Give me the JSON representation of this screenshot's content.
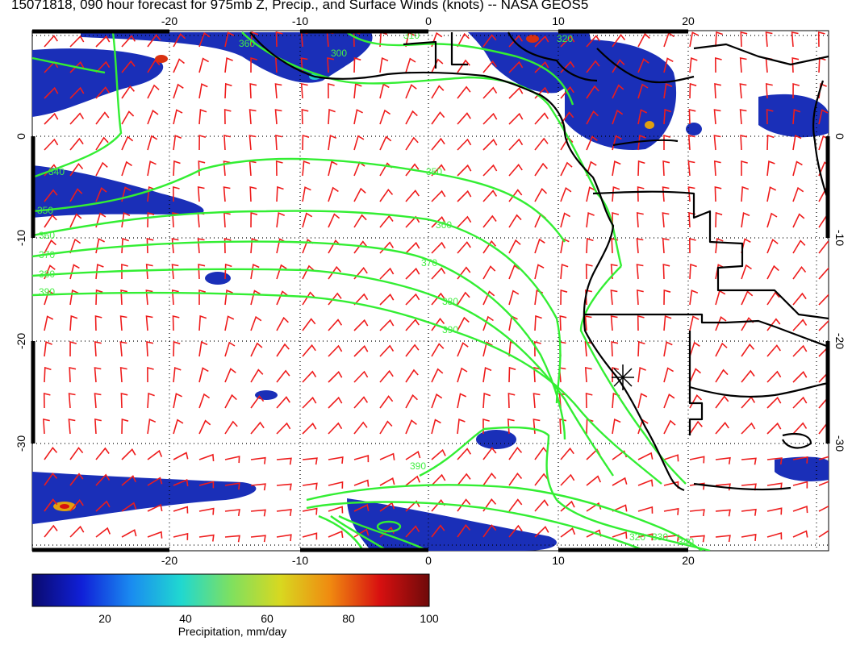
{
  "title": "15071818, 090 hour forecast for 975mb Z, Precip., and Surface Winds (knots) -- NASA GEOS5",
  "map": {
    "lon_ticks": [
      "-20",
      "-10",
      "0",
      "10",
      "20"
    ],
    "lat_ticks": [
      "0",
      "-10",
      "-20",
      "-30"
    ],
    "contour_labels": [
      "340",
      "350",
      "360",
      "370",
      "380",
      "390",
      "360",
      "370",
      "380",
      "390",
      "390",
      "350",
      "340",
      "330",
      "320",
      "300",
      "310",
      "320",
      "360"
    ],
    "colors": {
      "contour": "#33ee33",
      "barb": "#ee1c1c",
      "coast": "#000000",
      "precip_low": "#1a2fb8"
    }
  },
  "colorbar": {
    "ticks": [
      "20",
      "40",
      "60",
      "80",
      "100"
    ],
    "label": "Precipitation, mm/day",
    "stops": [
      "#0a0a6e",
      "#1020d8",
      "#1a8cf0",
      "#20d8d0",
      "#7ee060",
      "#d8d820",
      "#f08a10",
      "#d81010",
      "#6e0a0a"
    ]
  }
}
